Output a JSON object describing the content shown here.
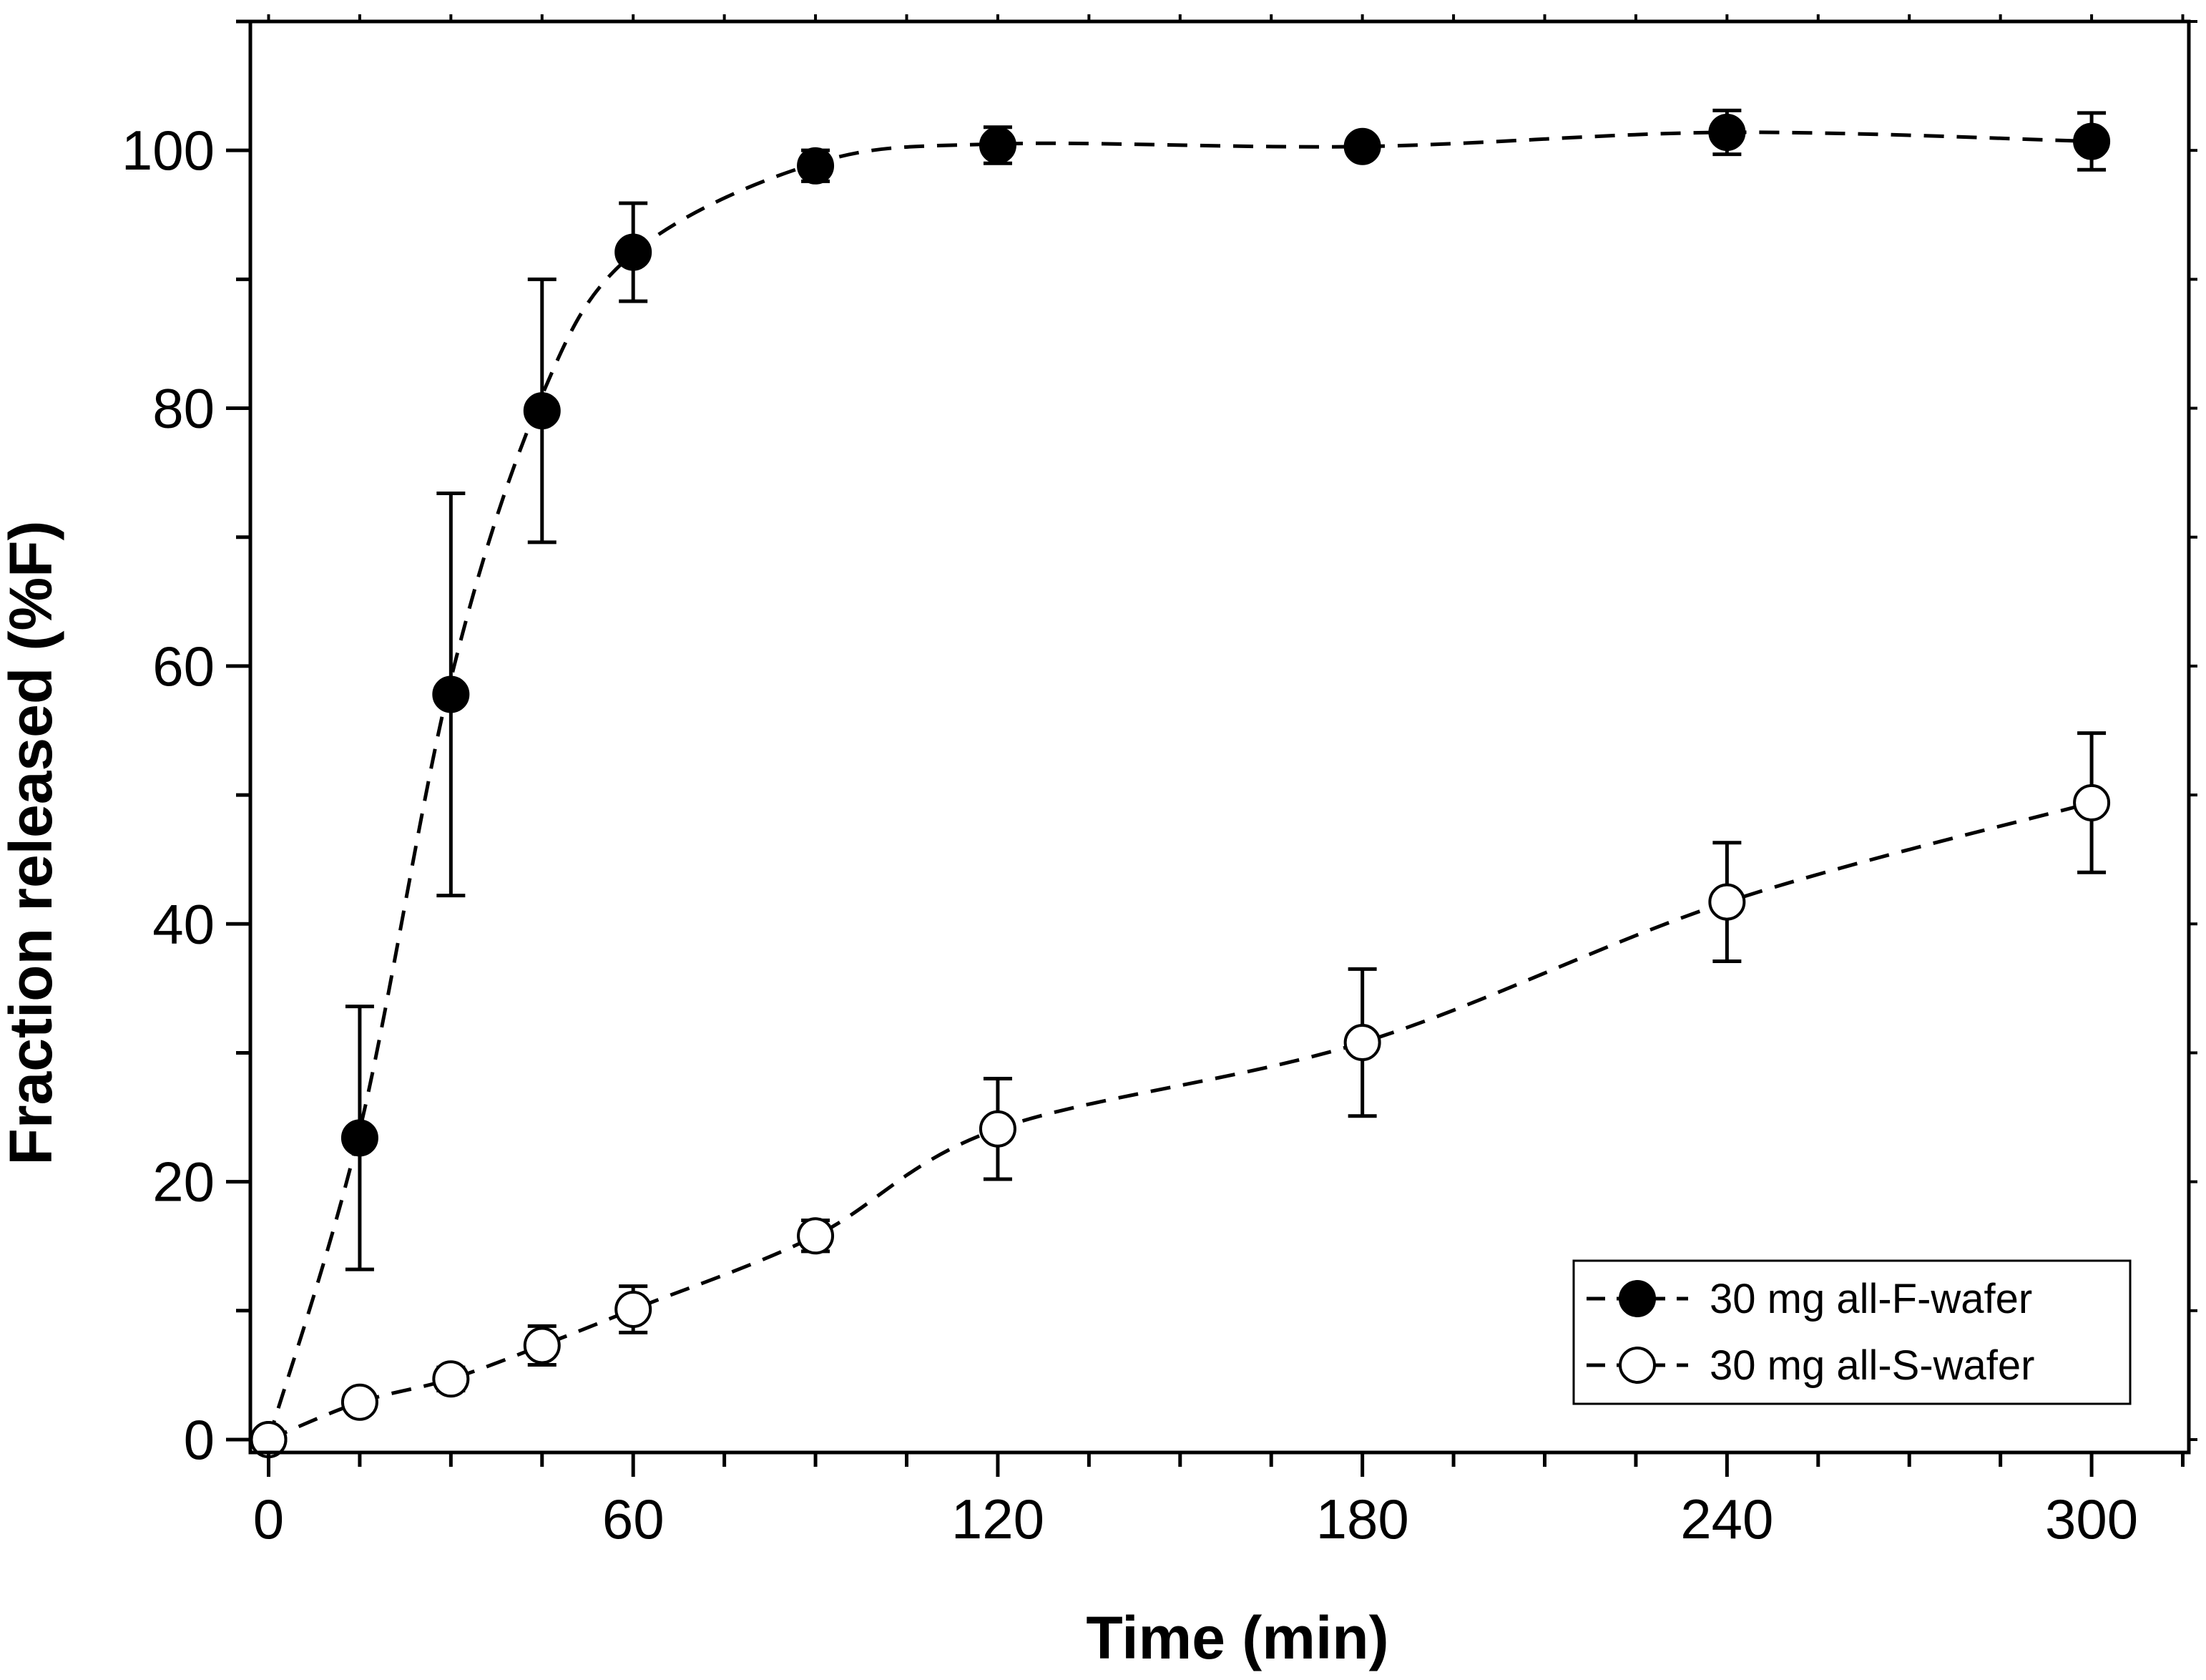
{
  "chart_data": {
    "type": "scatter",
    "title": "",
    "xlabel": "Time (min)",
    "ylabel": "Fraction released (%F)",
    "xlim": [
      -3,
      316
    ],
    "ylim": [
      -1,
      110
    ],
    "xticks": [
      0,
      60,
      120,
      180,
      240,
      300
    ],
    "yticks": [
      0,
      20,
      40,
      60,
      80,
      100
    ],
    "x_minor_step": 15,
    "y_minor_step": 10,
    "grid": false,
    "legend_position": "bottom-right",
    "series": [
      {
        "name": "30 mg all-F-wafer",
        "marker": "filled-circle",
        "line": "dashed",
        "x": [
          0,
          15,
          30,
          45,
          60,
          90,
          120,
          180,
          240,
          300
        ],
        "y": [
          0,
          23.4,
          57.8,
          79.8,
          92.1,
          98.8,
          100.4,
          100.3,
          101.4,
          100.7
        ],
        "err": [
          0,
          10.2,
          15.6,
          10.2,
          3.8,
          1.2,
          1.4,
          0.5,
          1.7,
          2.2
        ],
        "fit_y": [
          0,
          24,
          59,
          81,
          92,
          99,
          100.5,
          100.3,
          101.4,
          100.7
        ]
      },
      {
        "name": "30 mg all-S-wafer",
        "marker": "open-circle",
        "line": "dashed",
        "x": [
          0,
          15,
          30,
          45,
          60,
          90,
          120,
          180,
          240,
          300
        ],
        "y": [
          0,
          2.9,
          4.7,
          7.3,
          10.1,
          15.8,
          24.1,
          30.8,
          41.7,
          49.4
        ],
        "err": [
          0,
          0.8,
          0.9,
          1.5,
          1.8,
          1.2,
          3.9,
          5.7,
          4.6,
          5.4
        ],
        "fit_y": [
          0,
          2.9,
          4.7,
          7.3,
          10.1,
          15.8,
          24.1,
          30.8,
          41.7,
          49.4
        ]
      }
    ]
  }
}
